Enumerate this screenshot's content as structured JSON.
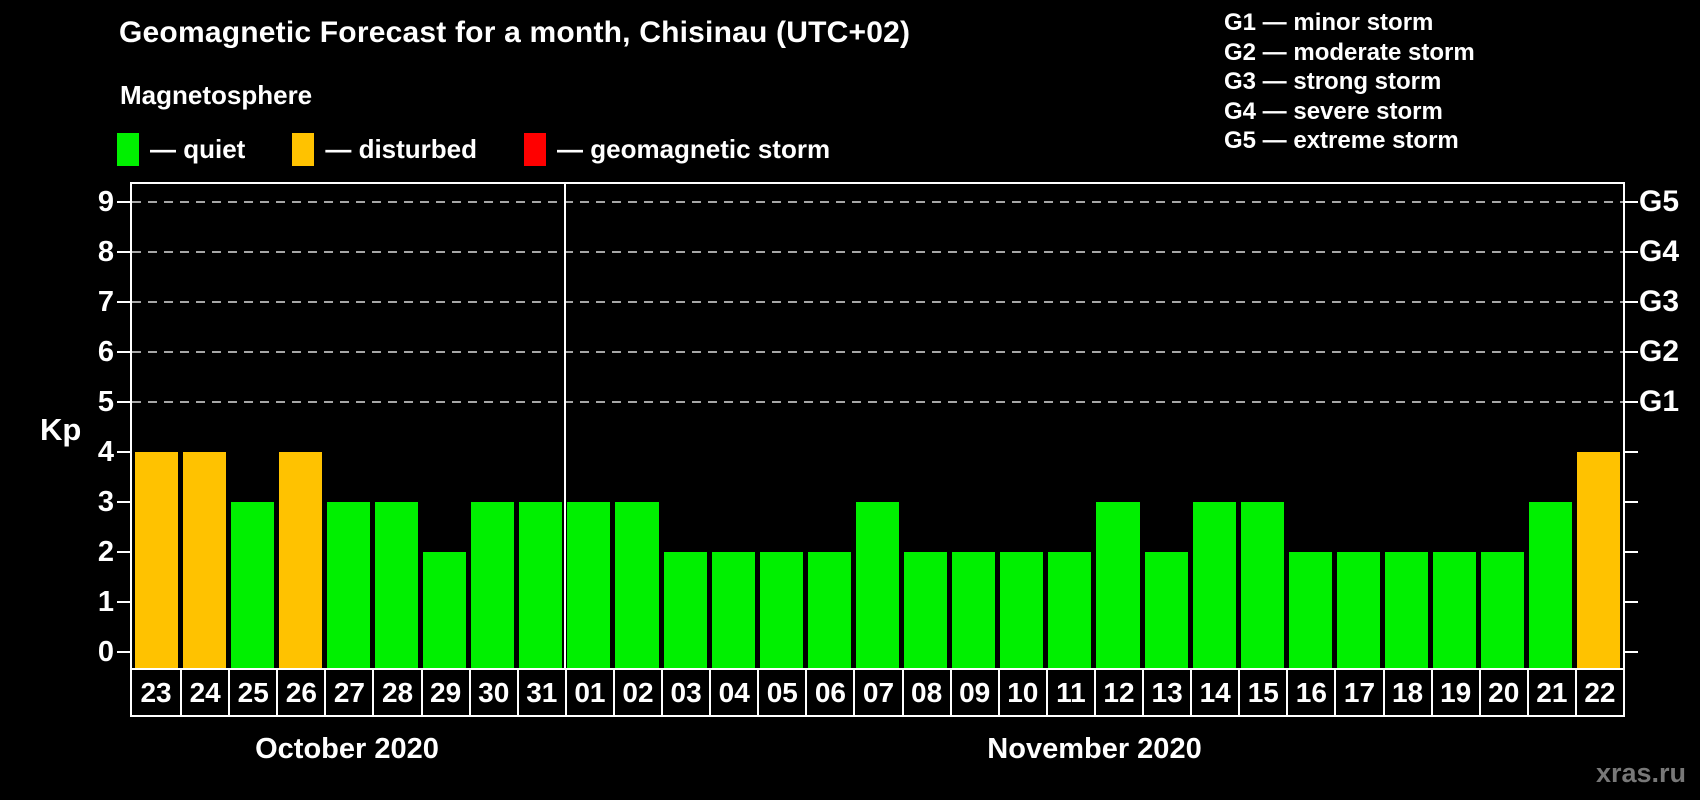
{
  "header": {
    "title": "Geomagnetic Forecast for a month, Chisinau (UTC+02)",
    "subtitle": "Magnetosphere"
  },
  "legend": {
    "items": [
      {
        "key": "quiet",
        "label": "— quiet",
        "color": "#00f000"
      },
      {
        "key": "disturbed",
        "label": "— disturbed",
        "color": "#ffc200"
      },
      {
        "key": "storm",
        "label": "— geomagnetic storm",
        "color": "#ff0000"
      }
    ]
  },
  "storm_scale_legend": {
    "lines": [
      "G1 — minor storm",
      "G2 — moderate storm",
      "G3 — strong storm",
      "G4 — severe storm",
      "G5 — extreme storm"
    ]
  },
  "watermark": "xras.ru",
  "colors": {
    "background": "#000000",
    "axis": "#ffffff",
    "gridline": "#a6a6a6",
    "quiet": "#00f000",
    "disturbed": "#ffc200",
    "storm": "#ff0000",
    "watermark": "#787878"
  },
  "chart_data": {
    "type": "bar",
    "ylabel": "Kp",
    "ylim": [
      0,
      9
    ],
    "y_ticks": [
      0,
      1,
      2,
      3,
      4,
      5,
      6,
      7,
      8,
      9
    ],
    "gridlines_at": [
      5,
      6,
      7,
      8,
      9
    ],
    "grid": "dashed horizontal lines at Kp 5-9",
    "legend_position": "top",
    "right_axis": [
      {
        "kp": 5,
        "label": "G1"
      },
      {
        "kp": 6,
        "label": "G2"
      },
      {
        "kp": 7,
        "label": "G3"
      },
      {
        "kp": 8,
        "label": "G4"
      },
      {
        "kp": 9,
        "label": "G5"
      }
    ],
    "months": [
      {
        "label": "October 2020",
        "days": 9
      },
      {
        "label": "November 2020",
        "days": 22
      }
    ],
    "categories": [
      "23",
      "24",
      "25",
      "26",
      "27",
      "28",
      "29",
      "30",
      "31",
      "01",
      "02",
      "03",
      "04",
      "05",
      "06",
      "07",
      "08",
      "09",
      "10",
      "11",
      "12",
      "13",
      "14",
      "15",
      "16",
      "17",
      "18",
      "19",
      "20",
      "21",
      "22"
    ],
    "values": [
      4,
      4,
      3,
      4,
      3,
      3,
      2,
      3,
      3,
      3,
      3,
      2,
      2,
      2,
      2,
      3,
      2,
      2,
      2,
      2,
      3,
      2,
      3,
      3,
      2,
      2,
      2,
      2,
      2,
      3,
      4
    ],
    "statuses": [
      "disturbed",
      "disturbed",
      "quiet",
      "disturbed",
      "quiet",
      "quiet",
      "quiet",
      "quiet",
      "quiet",
      "quiet",
      "quiet",
      "quiet",
      "quiet",
      "quiet",
      "quiet",
      "quiet",
      "quiet",
      "quiet",
      "quiet",
      "quiet",
      "quiet",
      "quiet",
      "quiet",
      "quiet",
      "quiet",
      "quiet",
      "quiet",
      "quiet",
      "quiet",
      "quiet",
      "disturbed"
    ]
  }
}
